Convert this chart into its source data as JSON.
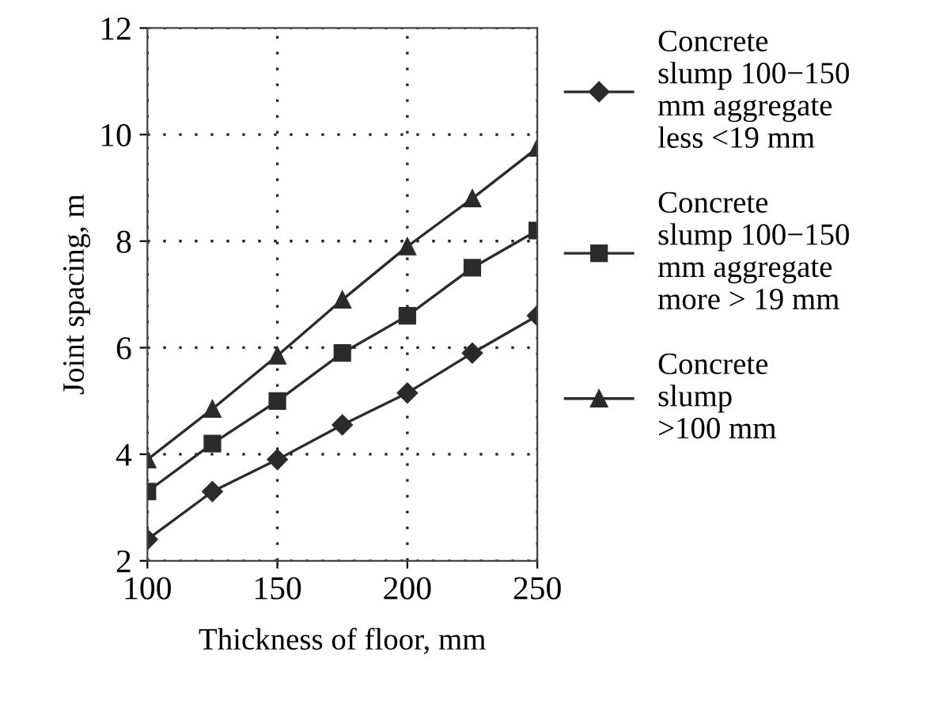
{
  "chart_data": {
    "type": "line",
    "xlabel": "Thickness of floor, mm",
    "ylabel": "Joint spacing, m",
    "x": [
      100,
      125,
      150,
      175,
      200,
      225,
      250
    ],
    "series": [
      {
        "name": "Concrete\nslump 100−150\nmm aggregate\nless <19 mm",
        "color": "#2b2b2b",
        "marker": "diamond",
        "values": [
          2.4,
          3.3,
          3.9,
          4.55,
          5.15,
          5.9,
          6.6
        ]
      },
      {
        "name": "Concrete\nslump 100−150\nmm aggregate\nmore > 19 mm",
        "color": "#2b2b2b",
        "marker": "square",
        "values": [
          3.3,
          4.2,
          5.0,
          5.9,
          6.6,
          7.5,
          8.2
        ]
      },
      {
        "name": "Concrete\nslump\n>100 mm",
        "color": "#2b2b2b",
        "marker": "triangle",
        "values": [
          3.9,
          4.85,
          5.85,
          6.9,
          7.9,
          8.8,
          9.75
        ]
      }
    ],
    "xlim": [
      100,
      250
    ],
    "xticks": [
      100,
      150,
      200,
      250
    ],
    "ylim": [
      2,
      12
    ],
    "yticks": [
      2,
      4,
      6,
      8,
      10,
      12
    ],
    "grid": true,
    "legend": "right",
    "line_style": "solid"
  }
}
